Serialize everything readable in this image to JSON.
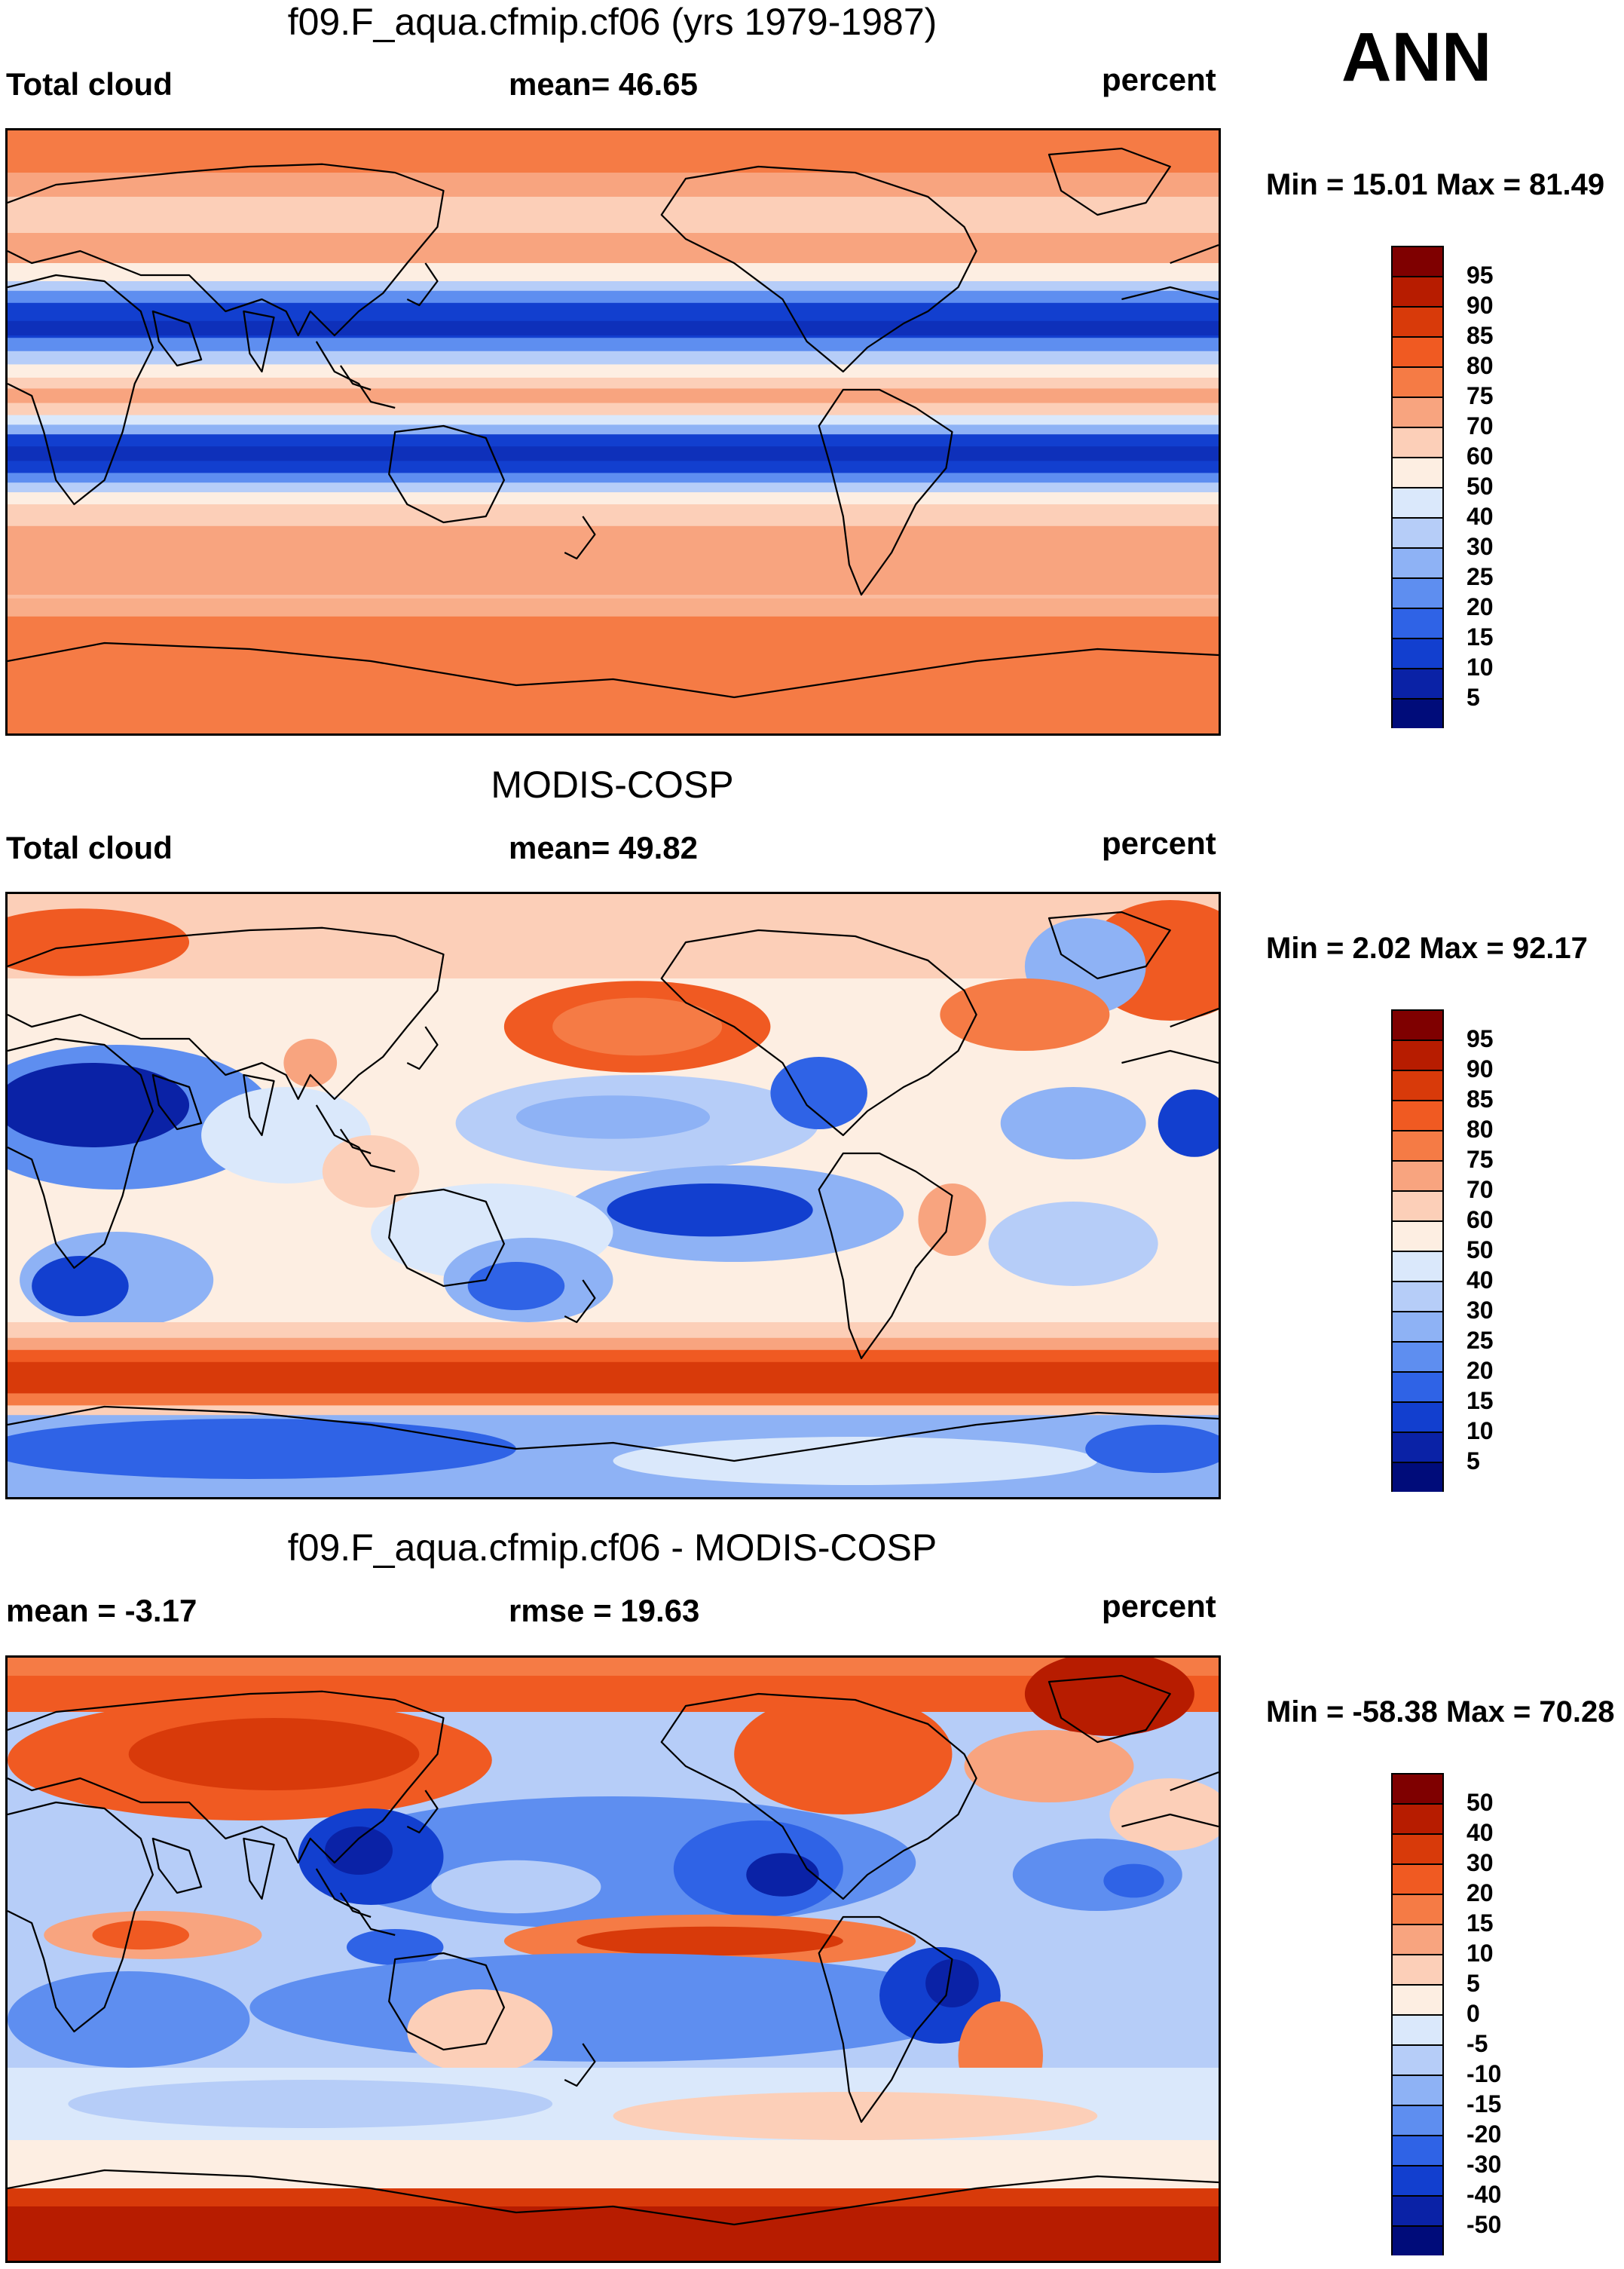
{
  "season": "ANN",
  "panels": [
    {
      "id": "model",
      "title": "f09.F_aqua.cfmip.cf06 (yrs 1979-1987)",
      "left_label": "Total cloud",
      "center_label": "mean=  46.65",
      "right_label": "percent",
      "minmax": "Min =  15.01 Max =  81.49"
    },
    {
      "id": "obs",
      "title": "MODIS-COSP",
      "left_label": "Total cloud",
      "center_label": "mean=  49.82",
      "right_label": "percent",
      "minmax": "Min =   2.02 Max =  92.17"
    },
    {
      "id": "diff",
      "title": "f09.F_aqua.cfmip.cf06 - MODIS-COSP",
      "left_label": "mean =  -3.17",
      "center_label": "rmse =  19.63",
      "right_label": "percent",
      "minmax": "Min = -58.38 Max =  70.28"
    }
  ],
  "colorbars": {
    "abs": {
      "labels": [
        "95",
        "90",
        "85",
        "80",
        "75",
        "70",
        "60",
        "50",
        "40",
        "30",
        "25",
        "20",
        "15",
        "10",
        "5"
      ],
      "colors": [
        "#7f0000",
        "#b71c00",
        "#d83a0a",
        "#f05a22",
        "#f57b45",
        "#f8a47f",
        "#fccfb8",
        "#fdeee2",
        "#dae8fb",
        "#b6cdf8",
        "#8eb2f5",
        "#5e8ef0",
        "#2f63e6",
        "#123fcf",
        "#0a22a6",
        "#000c7a"
      ]
    },
    "diff": {
      "labels": [
        "50",
        "40",
        "30",
        "20",
        "15",
        "10",
        "5",
        "0",
        "-5",
        "-10",
        "-15",
        "-20",
        "-30",
        "-40",
        "-50"
      ],
      "colors": [
        "#7f0000",
        "#b71c00",
        "#d83a0a",
        "#f05a22",
        "#f57b45",
        "#f8a47f",
        "#fccfb8",
        "#fdeee2",
        "#dae8fb",
        "#b6cdf8",
        "#8eb2f5",
        "#5e8ef0",
        "#2f63e6",
        "#123fcf",
        "#0a22a6",
        "#000c7a"
      ]
    }
  }
}
